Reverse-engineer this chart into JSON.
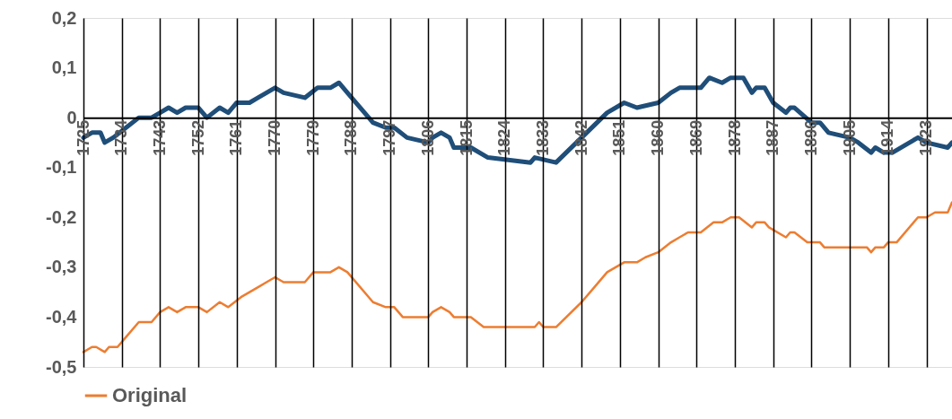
{
  "chart_data": {
    "type": "line",
    "xlim": [
      1725,
      1929
    ],
    "xticks": [
      1725,
      1734,
      1743,
      1752,
      1761,
      1770,
      1779,
      1788,
      1797,
      1806,
      1815,
      1824,
      1833,
      1842,
      1851,
      1860,
      1869,
      1878,
      1887,
      1896,
      1905,
      1914,
      1923
    ],
    "ylim": [
      -0.5,
      0.2
    ],
    "yticks": [
      {
        "value": 0.2,
        "label": "0,2"
      },
      {
        "value": 0.1,
        "label": "0,1"
      },
      {
        "value": 0,
        "label": "0"
      },
      {
        "value": -0.1,
        "label": "-0,1"
      },
      {
        "value": -0.2,
        "label": "-0,2"
      },
      {
        "value": -0.3,
        "label": "-0,3"
      },
      {
        "value": -0.4,
        "label": "-0,4"
      },
      {
        "value": -0.5,
        "label": "-0,5"
      }
    ],
    "grid": "x",
    "legend": "bottom",
    "marker": "none",
    "line_style": "solid",
    "series": [
      {
        "color": "#1f4e79",
        "x": [
          1725,
          1727,
          1729,
          1730,
          1732,
          1735,
          1738,
          1741,
          1743,
          1745,
          1747,
          1749,
          1752,
          1754,
          1757,
          1759,
          1761,
          1764,
          1766,
          1768,
          1770,
          1772,
          1777,
          1780,
          1783,
          1785,
          1787,
          1793,
          1796,
          1798,
          1801,
          1806,
          1807,
          1809,
          1811,
          1812,
          1816,
          1820,
          1830,
          1831,
          1836,
          1842,
          1848,
          1852,
          1855,
          1860,
          1863,
          1865,
          1867,
          1870,
          1872,
          1875,
          1877,
          1880,
          1882,
          1883,
          1885,
          1887,
          1890,
          1891,
          1892,
          1896,
          1898,
          1900,
          1905,
          1907,
          1910,
          1911,
          1913,
          1915,
          1921,
          1923,
          1928,
          1929
        ],
        "values": [
          -0.04,
          -0.03,
          -0.03,
          -0.05,
          -0.04,
          -0.02,
          0.0,
          0.0,
          0.01,
          0.02,
          0.01,
          0.02,
          0.02,
          0.0,
          0.02,
          0.01,
          0.03,
          0.03,
          0.04,
          0.05,
          0.06,
          0.05,
          0.04,
          0.06,
          0.06,
          0.07,
          0.05,
          -0.01,
          -0.02,
          -0.02,
          -0.04,
          -0.05,
          -0.04,
          -0.03,
          -0.04,
          -0.06,
          -0.06,
          -0.08,
          -0.09,
          -0.08,
          -0.09,
          -0.04,
          0.01,
          0.03,
          0.02,
          0.03,
          0.05,
          0.06,
          0.06,
          0.06,
          0.08,
          0.07,
          0.08,
          0.08,
          0.05,
          0.06,
          0.06,
          0.03,
          0.01,
          0.02,
          0.02,
          -0.01,
          -0.01,
          -0.03,
          -0.04,
          -0.05,
          -0.07,
          -0.06,
          -0.07,
          -0.07,
          -0.04,
          -0.05,
          -0.06,
          -0.05
        ]
      },
      {
        "name": "Original",
        "color": "#ed7d31",
        "x": [
          1725,
          1727,
          1728,
          1730,
          1731,
          1733,
          1735,
          1738,
          1741,
          1743,
          1745,
          1747,
          1749,
          1752,
          1754,
          1757,
          1759,
          1762,
          1764,
          1766,
          1768,
          1770,
          1772,
          1777,
          1779,
          1783,
          1785,
          1787,
          1793,
          1796,
          1798,
          1800,
          1806,
          1807,
          1809,
          1811,
          1812,
          1816,
          1819,
          1831,
          1832,
          1833,
          1836,
          1842,
          1845,
          1848,
          1852,
          1855,
          1857,
          1860,
          1863,
          1865,
          1867,
          1870,
          1873,
          1875,
          1877,
          1879,
          1882,
          1883,
          1885,
          1886,
          1890,
          1891,
          1892,
          1895,
          1898,
          1899,
          1909,
          1910,
          1911,
          1913,
          1914,
          1916,
          1921,
          1923,
          1925,
          1928,
          1929
        ],
        "values": [
          -0.47,
          -0.46,
          -0.46,
          -0.47,
          -0.46,
          -0.46,
          -0.44,
          -0.41,
          -0.41,
          -0.39,
          -0.38,
          -0.39,
          -0.38,
          -0.38,
          -0.39,
          -0.37,
          -0.38,
          -0.36,
          -0.35,
          -0.34,
          -0.33,
          -0.32,
          -0.33,
          -0.33,
          -0.31,
          -0.31,
          -0.3,
          -0.31,
          -0.37,
          -0.38,
          -0.38,
          -0.4,
          -0.4,
          -0.39,
          -0.38,
          -0.39,
          -0.4,
          -0.4,
          -0.42,
          -0.42,
          -0.41,
          -0.42,
          -0.42,
          -0.37,
          -0.34,
          -0.31,
          -0.29,
          -0.29,
          -0.28,
          -0.27,
          -0.25,
          -0.24,
          -0.23,
          -0.23,
          -0.21,
          -0.21,
          -0.2,
          -0.2,
          -0.22,
          -0.21,
          -0.21,
          -0.22,
          -0.24,
          -0.23,
          -0.23,
          -0.25,
          -0.25,
          -0.26,
          -0.26,
          -0.27,
          -0.26,
          -0.26,
          -0.25,
          -0.25,
          -0.2,
          -0.2,
          -0.19,
          -0.19,
          -0.17
        ]
      }
    ]
  }
}
